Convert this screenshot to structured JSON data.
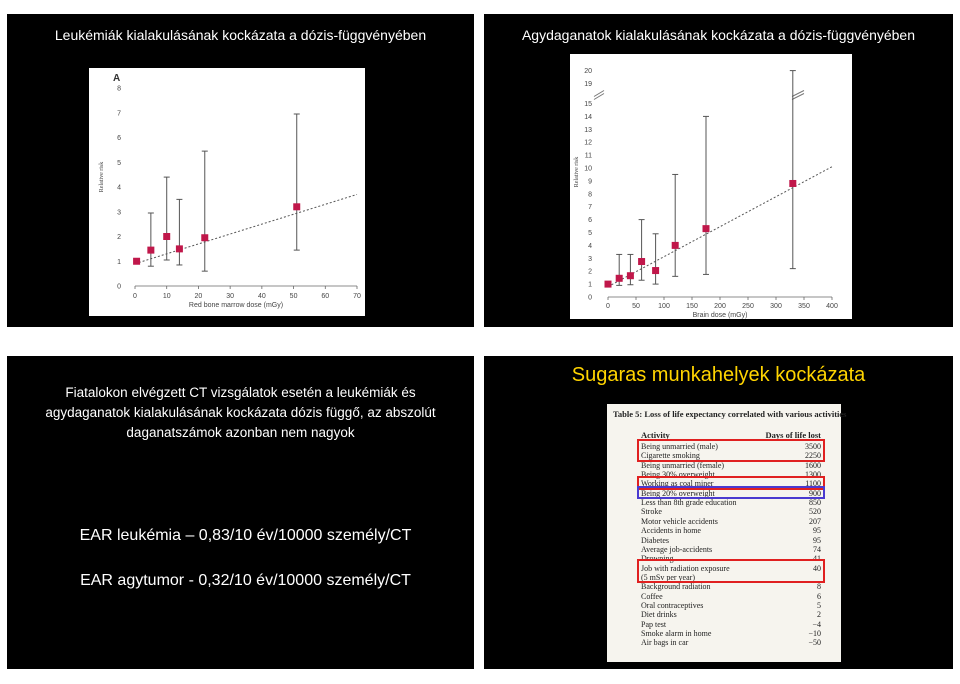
{
  "slides": {
    "s1": {
      "title": "Leukémiák kialakulásának kockázata a dózis-függvényében"
    },
    "s2": {
      "title": "Agydaganatok kialakulásának kockázata a dózis-függvényében"
    },
    "s3": {
      "paragraph_lines": [
        "Fiatalokon elvégzett CT vizsgálatok esetén a leukémiák és",
        "agydaganatok kialakulásának kockázata dózis függő, az abszolút",
        "daganatszámok azonban nem nagyok"
      ],
      "ear_leukemia": "EAR leukémia – 0,83/10 év/10000 személy/CT",
      "ear_brain": "EAR agytumor - 0,32/10 év/10000 személy/CT"
    },
    "s4": {
      "title": "Sugaras munkahelyek kockázata",
      "table_caption": "Table 5: Loss of life expectancy correlated with various activities",
      "col_activity": "Activity",
      "col_days": "Days of life lost",
      "rows": [
        [
          "Being unmarried (male)",
          "3500"
        ],
        [
          "Cigarette smoking",
          "2250"
        ],
        [
          "Being unmarried (female)",
          "1600"
        ],
        [
          "Being 30% overweight",
          "1300"
        ],
        [
          "Working as coal miner",
          "1100"
        ],
        [
          "Being 20% overweight",
          "900"
        ],
        [
          "Less than 8th grade education",
          "850"
        ],
        [
          "Stroke",
          "520"
        ],
        [
          "Motor vehicle accidents",
          "207"
        ],
        [
          "Accidents in home",
          "95"
        ],
        [
          "Diabetes",
          "95"
        ],
        [
          "Average job-accidents",
          "74"
        ],
        [
          "Drowning",
          "41"
        ],
        [
          "Job with radiation exposure",
          "40"
        ],
        [
          "(5 mSv per year)",
          ""
        ],
        [
          "Background radiation",
          "8"
        ],
        [
          "Coffee",
          "6"
        ],
        [
          "Oral contraceptives",
          "5"
        ],
        [
          "Diet drinks",
          "2"
        ],
        [
          "Pap test",
          "−4"
        ],
        [
          "Smoke alarm in home",
          "−10"
        ],
        [
          "Air bags in car",
          "−50"
        ]
      ],
      "highlight_colors": {
        "red": "#e02020",
        "blue": "#4a3ad0"
      }
    }
  },
  "chart_data": [
    {
      "type": "scatter",
      "panel_label": "A",
      "xlabel": "Red bone marrow dose (mGy)",
      "ylabel": "Relative risk",
      "xlim": [
        0,
        70
      ],
      "ylim": [
        0,
        8
      ],
      "xticks": [
        "0",
        "10",
        "20",
        "30",
        "40",
        "50",
        "60",
        "70"
      ],
      "yticks": [
        "0",
        "1",
        "2",
        "3",
        "4",
        "5",
        "6",
        "7",
        "8"
      ],
      "points": [
        {
          "x": 0.5,
          "y": 1.0,
          "lo": 1.0,
          "hi": 1.0
        },
        {
          "x": 5,
          "y": 1.45,
          "lo": 0.8,
          "hi": 2.95
        },
        {
          "x": 10,
          "y": 2.0,
          "lo": 1.05,
          "hi": 4.4
        },
        {
          "x": 14,
          "y": 1.5,
          "lo": 0.85,
          "hi": 3.5
        },
        {
          "x": 22,
          "y": 1.95,
          "lo": 0.6,
          "hi": 5.45
        },
        {
          "x": 51,
          "y": 3.2,
          "lo": 1.45,
          "hi": 6.95
        }
      ],
      "fit_line": {
        "x": [
          0,
          70
        ],
        "y": [
          0.9,
          3.7
        ]
      },
      "marker_color": "#c0174a"
    },
    {
      "type": "scatter",
      "xlabel": "Brain dose (mGy)",
      "ylabel": "Relative risk",
      "xlim": [
        0,
        400
      ],
      "ylim": [
        0,
        20
      ],
      "axis_break": [
        15,
        19
      ],
      "xticks": [
        "0",
        "50",
        "100",
        "150",
        "200",
        "250",
        "300",
        "350",
        "400"
      ],
      "yticks": [
        "0",
        "1",
        "2",
        "3",
        "4",
        "5",
        "6",
        "7",
        "8",
        "9",
        "10",
        "11",
        "12",
        "13",
        "14",
        "15",
        "19",
        "20"
      ],
      "points": [
        {
          "x": 0,
          "y": 1.0,
          "lo": 1.0,
          "hi": 1.0
        },
        {
          "x": 20,
          "y": 1.45,
          "lo": 0.9,
          "hi": 3.3
        },
        {
          "x": 40,
          "y": 1.65,
          "lo": 0.95,
          "hi": 3.3
        },
        {
          "x": 60,
          "y": 2.75,
          "lo": 1.3,
          "hi": 6.0
        },
        {
          "x": 85,
          "y": 2.05,
          "lo": 1.0,
          "hi": 4.9
        },
        {
          "x": 120,
          "y": 4.0,
          "lo": 1.6,
          "hi": 9.5
        },
        {
          "x": 175,
          "y": 5.3,
          "lo": 1.75,
          "hi": 14.0
        },
        {
          "x": 330,
          "y": 8.8,
          "lo": 2.2,
          "hi": 20.0
        }
      ],
      "fit_line": {
        "x": [
          0,
          400
        ],
        "y": [
          0.8,
          10.1
        ]
      },
      "marker_color": "#c0174a"
    }
  ]
}
